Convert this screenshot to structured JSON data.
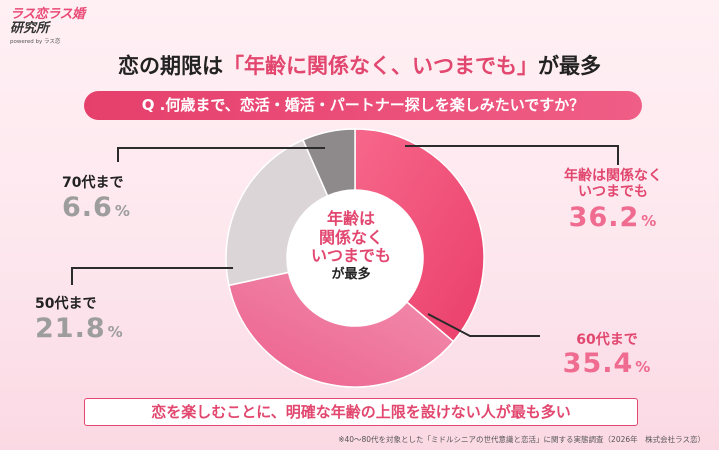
{
  "brand": {
    "main": "ラス恋ラス婚",
    "sub": "研究所",
    "powered": "powered by ラス恋"
  },
  "headline": {
    "prefix": "恋の期限は",
    "highlight": "「年齢に関係なく、いつまでも」",
    "suffix": "が最多"
  },
  "question": "Q .何歳まで、恋活・婚活・パートナー探しを楽しみたいですか？",
  "center": {
    "line1": "年齢は",
    "line2": "関係なく",
    "line3": "いつまでも",
    "line4": "が最多"
  },
  "labels": {
    "forever": {
      "name1": "年齢は関係なく",
      "name2": "いつまでも",
      "value": "36.2",
      "pct": "%"
    },
    "sixties": {
      "name": "60代まで",
      "value": "35.4",
      "pct": "%"
    },
    "fifties": {
      "name": "50代まで",
      "value": "21.8",
      "pct": "%"
    },
    "seventies": {
      "name": "70代まで",
      "value": "6.6",
      "pct": "%"
    }
  },
  "conclusion": "恋を楽しむことに、明確な年齢の上限を設けない人が最も多い",
  "footnote": "※40～80代を対象とした「ミドルシニアの世代意識と恋活」に関する実態調査（2026年　株式会社ラス恋）",
  "chart_data": {
    "type": "pie",
    "donut": true,
    "title": "Q .何歳まで、恋活・婚活・パートナー探しを楽しみたいですか？",
    "categories": [
      "年齢は関係なくいつまでも",
      "60代まで",
      "50代まで",
      "70代まで"
    ],
    "values": [
      36.2,
      35.4,
      21.8,
      6.6
    ],
    "unit": "%",
    "colors": [
      "#f25a7f",
      "#f07aa0",
      "#dcd5d7",
      "#8e8a8c"
    ]
  }
}
